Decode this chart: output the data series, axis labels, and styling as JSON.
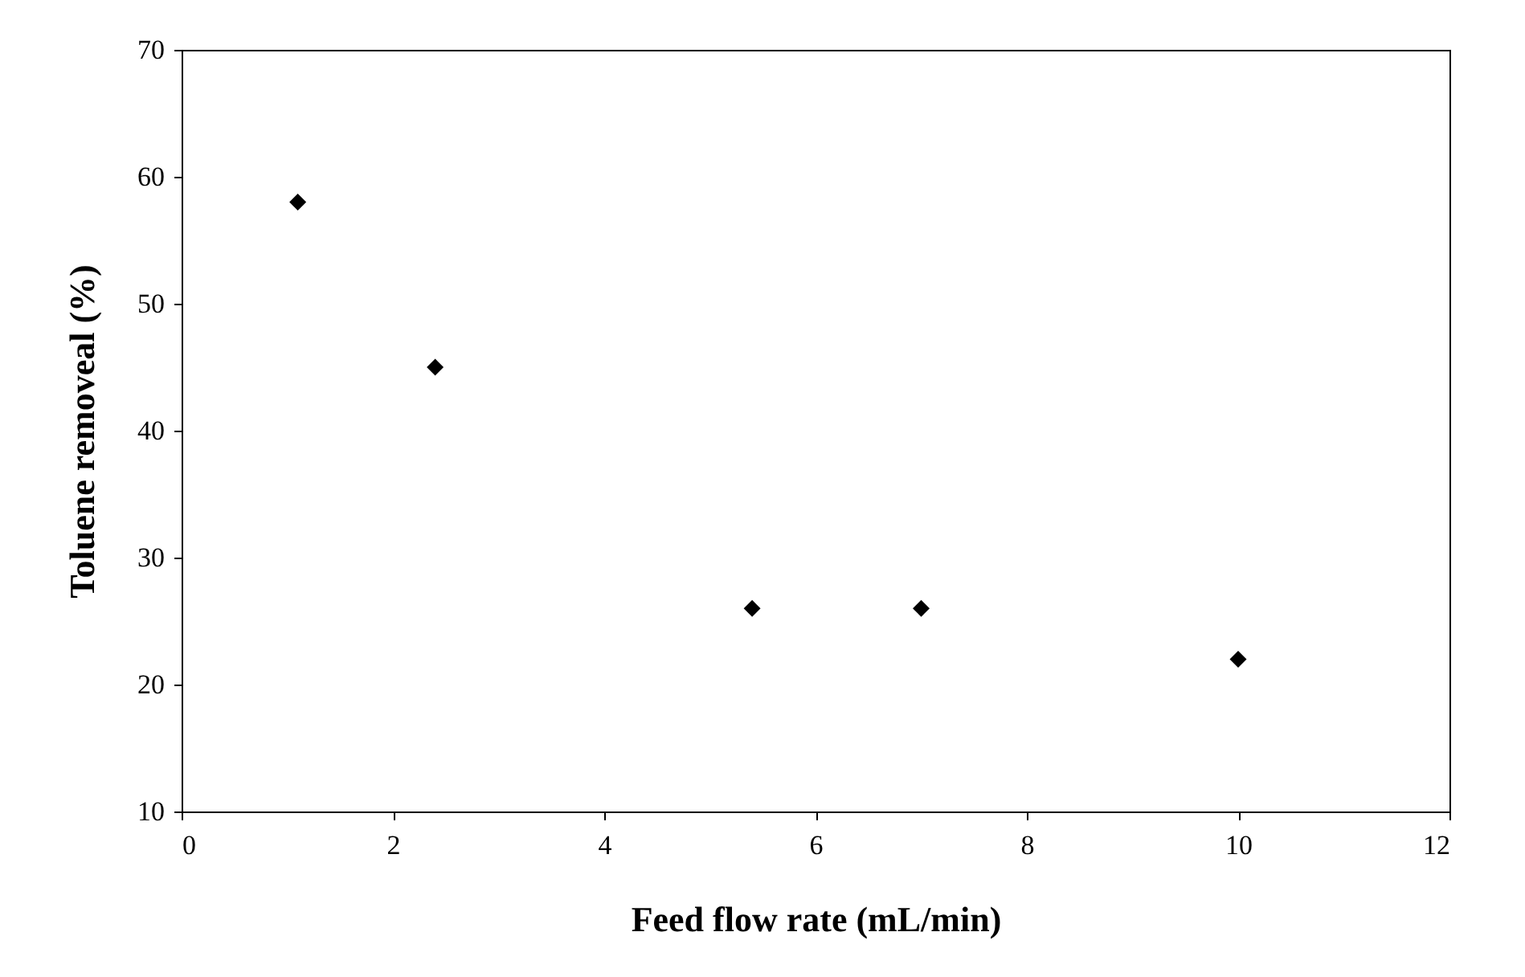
{
  "chart_data": {
    "type": "scatter",
    "xlabel": "Feed flow rate (mL/min)",
    "ylabel": "Toluene removeal (%)",
    "x": [
      1.1,
      2.4,
      5.4,
      7.0,
      10.0
    ],
    "series": [
      {
        "color": "#000000",
        "values": [
          58,
          45,
          26,
          26,
          22
        ]
      }
    ],
    "xlim": [
      0,
      12
    ],
    "xticks": [
      0,
      2,
      4,
      6,
      8,
      10,
      12
    ],
    "ylim": [
      10,
      70
    ],
    "yticks": [
      10,
      20,
      30,
      40,
      50,
      60,
      70
    ],
    "grid": false,
    "marker": "diamond"
  }
}
